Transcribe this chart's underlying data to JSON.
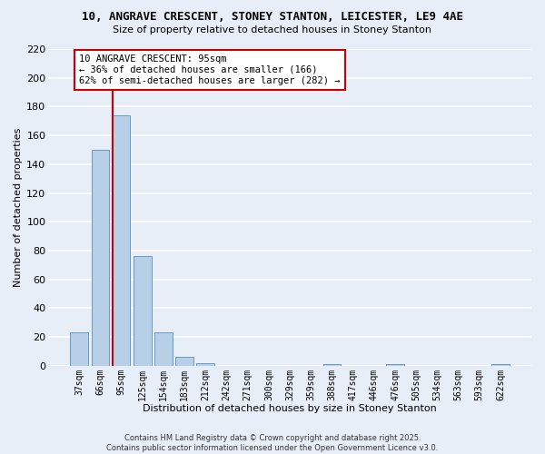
{
  "title_line1": "10, ANGRAVE CRESCENT, STONEY STANTON, LEICESTER, LE9 4AE",
  "title_line2": "Size of property relative to detached houses in Stoney Stanton",
  "bar_labels": [
    "37sqm",
    "66sqm",
    "95sqm",
    "125sqm",
    "154sqm",
    "183sqm",
    "212sqm",
    "242sqm",
    "271sqm",
    "300sqm",
    "329sqm",
    "359sqm",
    "388sqm",
    "417sqm",
    "446sqm",
    "476sqm",
    "505sqm",
    "534sqm",
    "563sqm",
    "593sqm",
    "622sqm"
  ],
  "bar_values": [
    23,
    150,
    174,
    76,
    23,
    6,
    2,
    0,
    0,
    0,
    0,
    0,
    1,
    0,
    0,
    1,
    0,
    0,
    0,
    0,
    1
  ],
  "bar_color": "#b8cfe8",
  "bar_edge_color": "#6699cc",
  "highlight_index": 2,
  "highlight_color": "#cc0000",
  "xlabel": "Distribution of detached houses by size in Stoney Stanton",
  "ylabel": "Number of detached properties",
  "ylim": [
    0,
    220
  ],
  "yticks": [
    0,
    20,
    40,
    60,
    80,
    100,
    120,
    140,
    160,
    180,
    200,
    220
  ],
  "annotation_title": "10 ANGRAVE CRESCENT: 95sqm",
  "annotation_line1": "← 36% of detached houses are smaller (166)",
  "annotation_line2": "62% of semi-detached houses are larger (282) →",
  "footer_line1": "Contains HM Land Registry data © Crown copyright and database right 2025.",
  "footer_line2": "Contains public sector information licensed under the Open Government Licence v3.0.",
  "bg_color": "#e8eef8",
  "grid_color": "#d0d8e8"
}
